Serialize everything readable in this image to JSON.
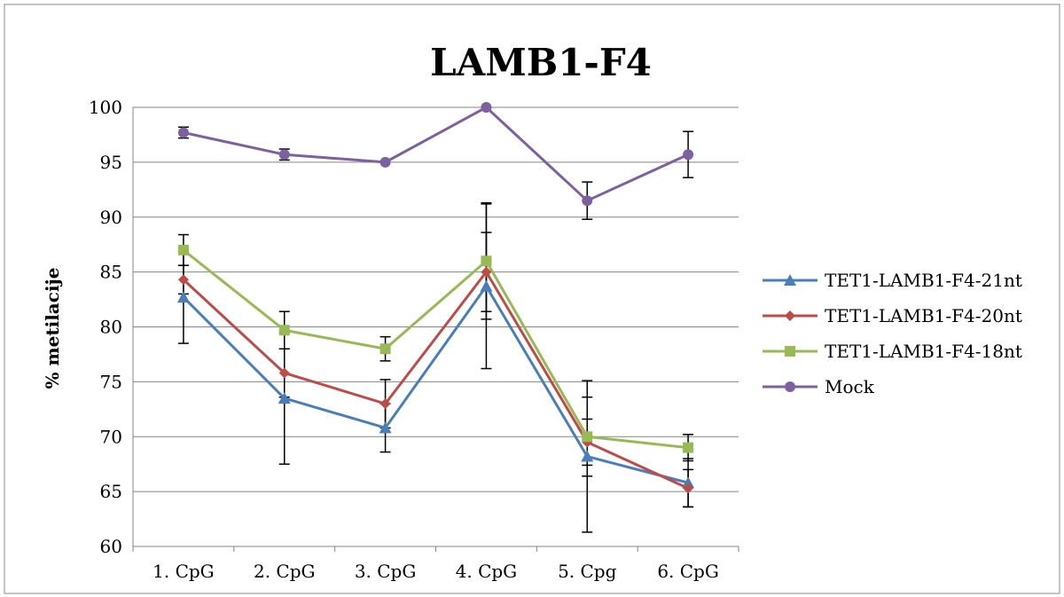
{
  "chart_data": {
    "type": "line",
    "title": "LAMB1-F4",
    "xlabel": "",
    "ylabel": "% metilacije",
    "ylim": [
      60,
      100
    ],
    "yticks": [
      60,
      65,
      70,
      75,
      80,
      85,
      90,
      95,
      100
    ],
    "grid": true,
    "legend": "right",
    "categories": [
      "1. CpG",
      "2. CpG",
      "3. CpG",
      "4. CpG",
      "5. Cpg",
      "6. CpG"
    ],
    "series": [
      {
        "name": "TET1-LAMB1-F4-21nt",
        "color": "#4A7EBB",
        "marker": "triangle",
        "values": [
          82.7,
          73.5,
          70.8,
          83.7,
          68.2,
          65.8
        ],
        "errors": [
          4.2,
          6.0,
          2.2,
          7.5,
          6.9,
          2.2
        ]
      },
      {
        "name": "TET1-LAMB1-F4-20nt",
        "color": "#BE4B48",
        "marker": "diamond",
        "values": [
          84.3,
          75.8,
          73.0,
          85.0,
          69.5,
          65.3
        ],
        "errors": [
          1.3,
          2.2,
          2.2,
          3.6,
          2.1,
          1.7
        ]
      },
      {
        "name": "TET1-LAMB1-F4-18nt",
        "color": "#98B954",
        "marker": "square",
        "values": [
          87.0,
          79.7,
          78.0,
          86.0,
          70.0,
          69.0
        ],
        "errors": [
          1.4,
          1.7,
          1.1,
          5.3,
          3.6,
          1.2
        ]
      },
      {
        "name": "Mock",
        "color": "#7D60A0",
        "marker": "circle",
        "values": [
          97.7,
          95.7,
          95.0,
          100.0,
          91.5,
          95.7
        ],
        "errors": [
          0.5,
          0.5,
          0.0,
          0.0,
          1.7,
          2.1
        ]
      }
    ]
  }
}
